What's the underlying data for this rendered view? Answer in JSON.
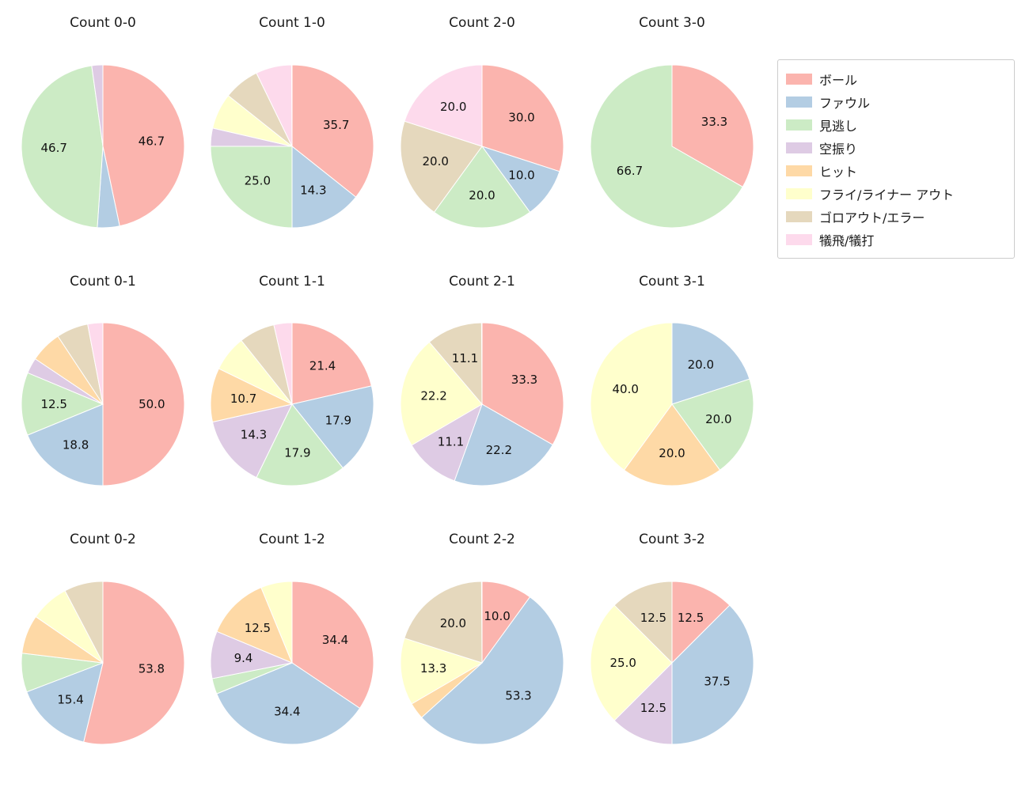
{
  "figure": {
    "background": "#ffffff",
    "text_color": "#1a1a1a"
  },
  "legend": {
    "items": [
      {
        "label": "ボール",
        "color": "#fbb4ae"
      },
      {
        "label": "ファウル",
        "color": "#b3cde3"
      },
      {
        "label": "見逃し",
        "color": "#ccebc5"
      },
      {
        "label": "空振り",
        "color": "#decbe4"
      },
      {
        "label": "ヒット",
        "color": "#fed9a6"
      },
      {
        "label": "フライ/ライナー アウト",
        "color": "#ffffcc"
      },
      {
        "label": "ゴロアウト/エラー",
        "color": "#e5d8bd"
      },
      {
        "label": "犠飛/犠打",
        "color": "#fddaec"
      }
    ]
  },
  "chart_data": {
    "type": "pie",
    "grid": {
      "rows": 3,
      "cols": 4
    },
    "start_angle_deg": 90,
    "direction": "clockwise",
    "pct_distance": 0.6,
    "legend_position": "upper right",
    "layout": {
      "col_centers": [
        130,
        369,
        609,
        849
      ],
      "row_pie_centers": [
        185,
        511,
        838
      ],
      "row_title_centers": [
        29,
        356,
        682
      ],
      "radius": 103
    },
    "charts": [
      {
        "title": "Count 0-0",
        "row": 0,
        "col": 0,
        "slices": [
          {
            "category": "ボール",
            "value": 46.7,
            "label": "46.7"
          },
          {
            "category": "ファウル",
            "value": 4.4,
            "label": ""
          },
          {
            "category": "見逃し",
            "value": 46.7,
            "label": "46.7"
          },
          {
            "category": "空振り",
            "value": 2.2,
            "label": ""
          }
        ]
      },
      {
        "title": "Count 1-0",
        "row": 0,
        "col": 1,
        "slices": [
          {
            "category": "ボール",
            "value": 35.7,
            "label": "35.7"
          },
          {
            "category": "ファウル",
            "value": 14.3,
            "label": "14.3"
          },
          {
            "category": "見逃し",
            "value": 25.0,
            "label": "25.0"
          },
          {
            "category": "空振り",
            "value": 3.6,
            "label": ""
          },
          {
            "category": "フライ/ライナー アウト",
            "value": 7.1,
            "label": ""
          },
          {
            "category": "ゴロアウト/エラー",
            "value": 7.1,
            "label": ""
          },
          {
            "category": "犠飛/犠打",
            "value": 7.1,
            "label": ""
          }
        ]
      },
      {
        "title": "Count 2-0",
        "row": 0,
        "col": 2,
        "slices": [
          {
            "category": "ボール",
            "value": 30.0,
            "label": "30.0"
          },
          {
            "category": "ファウル",
            "value": 10.0,
            "label": "10.0"
          },
          {
            "category": "見逃し",
            "value": 20.0,
            "label": "20.0"
          },
          {
            "category": "ゴロアウト/エラー",
            "value": 20.0,
            "label": "20.0"
          },
          {
            "category": "犠飛/犠打",
            "value": 20.0,
            "label": "20.0"
          }
        ]
      },
      {
        "title": "Count 3-0",
        "row": 0,
        "col": 3,
        "slices": [
          {
            "category": "ボール",
            "value": 33.3,
            "label": "33.3"
          },
          {
            "category": "見逃し",
            "value": 66.7,
            "label": "66.7"
          }
        ]
      },
      {
        "title": "Count 0-1",
        "row": 1,
        "col": 0,
        "slices": [
          {
            "category": "ボール",
            "value": 50.0,
            "label": "50.0"
          },
          {
            "category": "ファウル",
            "value": 18.8,
            "label": "18.8"
          },
          {
            "category": "見逃し",
            "value": 12.5,
            "label": "12.5"
          },
          {
            "category": "空振り",
            "value": 3.1,
            "label": ""
          },
          {
            "category": "ヒット",
            "value": 6.3,
            "label": ""
          },
          {
            "category": "ゴロアウト/エラー",
            "value": 6.3,
            "label": ""
          },
          {
            "category": "犠飛/犠打",
            "value": 3.1,
            "label": ""
          }
        ]
      },
      {
        "title": "Count 1-1",
        "row": 1,
        "col": 1,
        "slices": [
          {
            "category": "ボール",
            "value": 21.4,
            "label": "21.4"
          },
          {
            "category": "ファウル",
            "value": 17.9,
            "label": "17.9"
          },
          {
            "category": "見逃し",
            "value": 17.9,
            "label": "17.9"
          },
          {
            "category": "空振り",
            "value": 14.3,
            "label": "14.3"
          },
          {
            "category": "ヒット",
            "value": 10.7,
            "label": "10.7"
          },
          {
            "category": "フライ/ライナー アウト",
            "value": 7.1,
            "label": ""
          },
          {
            "category": "ゴロアウト/エラー",
            "value": 7.1,
            "label": ""
          },
          {
            "category": "犠飛/犠打",
            "value": 3.6,
            "label": ""
          }
        ]
      },
      {
        "title": "Count 2-1",
        "row": 1,
        "col": 2,
        "slices": [
          {
            "category": "ボール",
            "value": 33.3,
            "label": "33.3"
          },
          {
            "category": "ファウル",
            "value": 22.2,
            "label": "22.2"
          },
          {
            "category": "空振り",
            "value": 11.1,
            "label": "11.1"
          },
          {
            "category": "フライ/ライナー アウト",
            "value": 22.2,
            "label": "22.2"
          },
          {
            "category": "ゴロアウト/エラー",
            "value": 11.1,
            "label": "11.1"
          }
        ]
      },
      {
        "title": "Count 3-1",
        "row": 1,
        "col": 3,
        "slices": [
          {
            "category": "ファウル",
            "value": 20.0,
            "label": "20.0"
          },
          {
            "category": "見逃し",
            "value": 20.0,
            "label": "20.0"
          },
          {
            "category": "ヒット",
            "value": 20.0,
            "label": "20.0"
          },
          {
            "category": "フライ/ライナー アウト",
            "value": 40.0,
            "label": "40.0"
          }
        ]
      },
      {
        "title": "Count 0-2",
        "row": 2,
        "col": 0,
        "slices": [
          {
            "category": "ボール",
            "value": 53.8,
            "label": "53.8"
          },
          {
            "category": "ファウル",
            "value": 15.4,
            "label": "15.4"
          },
          {
            "category": "見逃し",
            "value": 7.7,
            "label": ""
          },
          {
            "category": "ヒット",
            "value": 7.7,
            "label": ""
          },
          {
            "category": "フライ/ライナー アウト",
            "value": 7.7,
            "label": ""
          },
          {
            "category": "ゴロアウト/エラー",
            "value": 7.7,
            "label": ""
          }
        ]
      },
      {
        "title": "Count 1-2",
        "row": 2,
        "col": 1,
        "slices": [
          {
            "category": "ボール",
            "value": 34.4,
            "label": "34.4"
          },
          {
            "category": "ファウル",
            "value": 34.4,
            "label": "34.4"
          },
          {
            "category": "見逃し",
            "value": 3.1,
            "label": ""
          },
          {
            "category": "空振り",
            "value": 9.4,
            "label": "9.4"
          },
          {
            "category": "ヒット",
            "value": 12.5,
            "label": "12.5"
          },
          {
            "category": "フライ/ライナー アウト",
            "value": 6.3,
            "label": ""
          }
        ]
      },
      {
        "title": "Count 2-2",
        "row": 2,
        "col": 2,
        "slices": [
          {
            "category": "ボール",
            "value": 10.0,
            "label": "10.0"
          },
          {
            "category": "ファウル",
            "value": 53.3,
            "label": "53.3"
          },
          {
            "category": "ヒット",
            "value": 3.3,
            "label": ""
          },
          {
            "category": "フライ/ライナー アウト",
            "value": 13.3,
            "label": "13.3"
          },
          {
            "category": "ゴロアウト/エラー",
            "value": 20.0,
            "label": "20.0"
          }
        ]
      },
      {
        "title": "Count 3-2",
        "row": 2,
        "col": 3,
        "slices": [
          {
            "category": "ボール",
            "value": 12.5,
            "label": "12.5"
          },
          {
            "category": "ファウル",
            "value": 37.5,
            "label": "37.5"
          },
          {
            "category": "空振り",
            "value": 12.5,
            "label": "12.5"
          },
          {
            "category": "フライ/ライナー アウト",
            "value": 25.0,
            "label": "25.0"
          },
          {
            "category": "ゴロアウト/エラー",
            "value": 12.5,
            "label": "12.5"
          }
        ]
      }
    ]
  }
}
